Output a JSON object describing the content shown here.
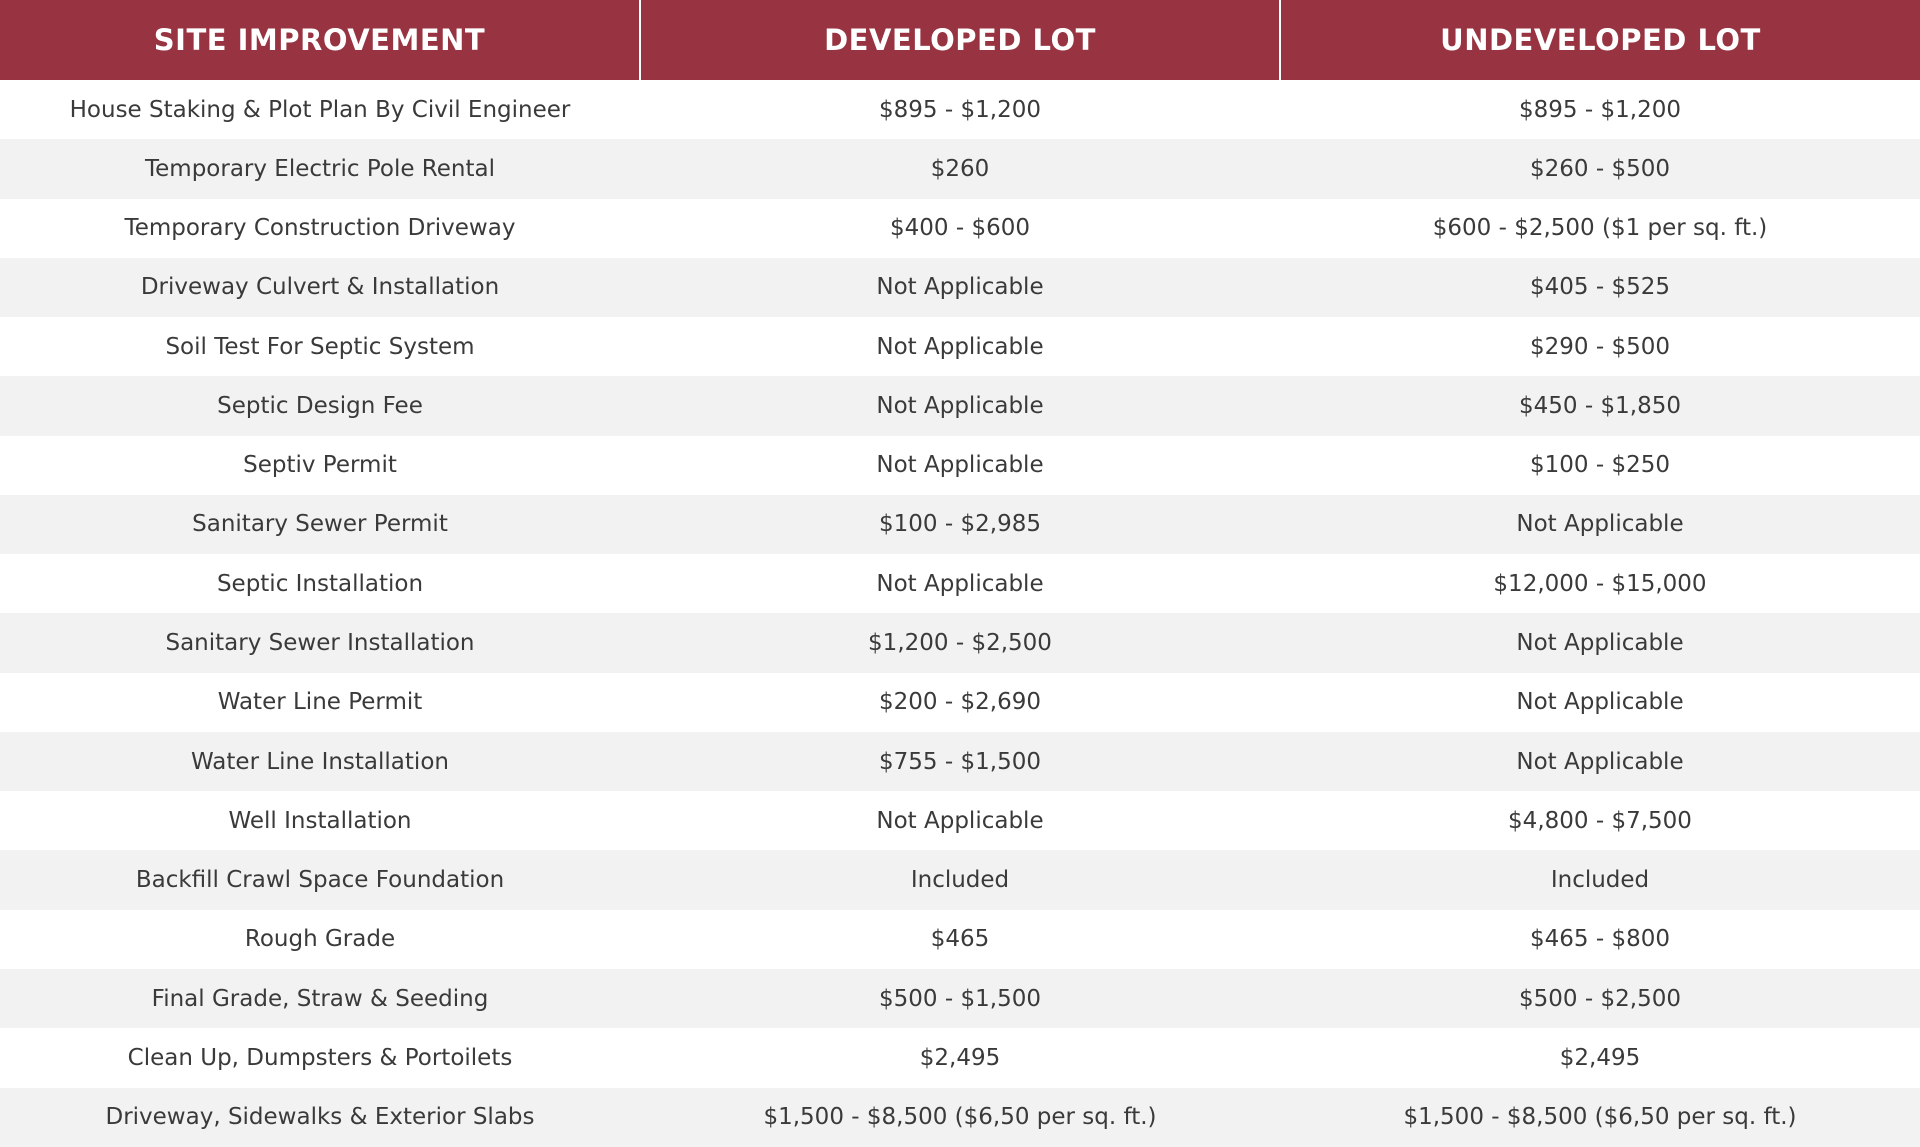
{
  "table": {
    "columns": [
      "SITE IMPROVEMENT",
      "DEVELOPED LOT",
      "UNDEVELOPED LOT"
    ],
    "rows": [
      [
        "House Staking & Plot Plan By Civil Engineer",
        "$895 - $1,200",
        "$895 - $1,200"
      ],
      [
        "Temporary Electric Pole Rental",
        "$260",
        "$260 - $500"
      ],
      [
        "Temporary Construction Driveway",
        "$400 - $600",
        "$600 - $2,500 ($1 per sq. ft.)"
      ],
      [
        "Driveway Culvert & Installation",
        "Not Applicable",
        "$405 - $525"
      ],
      [
        "Soil Test For Septic System",
        "Not Applicable",
        "$290 - $500"
      ],
      [
        "Septic Design Fee",
        "Not Applicable",
        "$450 - $1,850"
      ],
      [
        "Septiv Permit",
        "Not Applicable",
        "$100 - $250"
      ],
      [
        "Sanitary Sewer Permit",
        "$100 - $2,985",
        "Not Applicable"
      ],
      [
        "Septic Installation",
        "Not Applicable",
        "$12,000 - $15,000"
      ],
      [
        "Sanitary Sewer Installation",
        "$1,200 - $2,500",
        "Not Applicable"
      ],
      [
        "Water Line Permit",
        "$200 - $2,690",
        "Not Applicable"
      ],
      [
        "Water Line Installation",
        "$755 - $1,500",
        "Not Applicable"
      ],
      [
        "Well Installation",
        "Not Applicable",
        "$4,800 - $7,500"
      ],
      [
        "Backfill Crawl Space Foundation",
        "Included",
        "Included"
      ],
      [
        "Rough Grade",
        "$465",
        "$465 - $800"
      ],
      [
        "Final Grade, Straw & Seeding",
        "$500 - $1,500",
        "$500 - $2,500"
      ],
      [
        "Clean Up, Dumpsters & Portoilets",
        "$2,495",
        "$2,495"
      ],
      [
        "Driveway, Sidewalks & Exterior Slabs",
        "$1,500 - $8,500 ($6,50 per sq. ft.)",
        "$1,500 - $8,500 ($6,50 per sq. ft.)"
      ]
    ]
  }
}
